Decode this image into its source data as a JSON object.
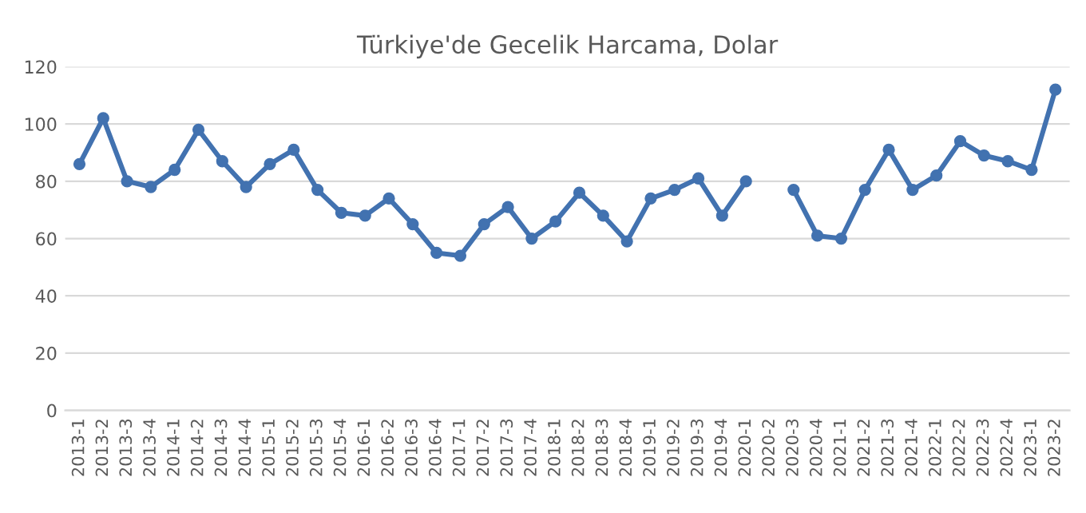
{
  "chart_data": {
    "type": "line",
    "title": "Türkiye'de Gecelik Harcama, Dolar",
    "categories": [
      "2013-1",
      "2013-2",
      "2013-3",
      "2013-4",
      "2014-1",
      "2014-2",
      "2014-3",
      "2014-4",
      "2015-1",
      "2015-2",
      "2015-3",
      "2015-4",
      "2016-1",
      "2016-2",
      "2016-3",
      "2016-4",
      "2017-1",
      "2017-2",
      "2017-3",
      "2017-4",
      "2018-1",
      "2018-2",
      "2018-3",
      "2018-4",
      "2019-1",
      "2019-2",
      "2019-3",
      "2019-4",
      "2020-1",
      "2020-2",
      "2020-3",
      "2020-4",
      "2021-1",
      "2021-2",
      "2021-3",
      "2021-4",
      "2022-1",
      "2022-2",
      "2022-3",
      "2022-4",
      "2023-1",
      "2023-2"
    ],
    "series": [
      {
        "color": "#4272b0",
        "values": [
          86,
          102,
          80,
          78,
          84,
          98,
          87,
          78,
          86,
          91,
          77,
          69,
          68,
          74,
          65,
          55,
          54,
          65,
          71,
          60,
          66,
          76,
          68,
          59,
          74,
          77,
          81,
          68,
          80,
          null,
          77,
          61,
          60,
          77,
          91,
          77,
          82,
          94,
          89,
          87,
          84,
          112
        ]
      }
    ],
    "ylim": [
      0,
      120
    ],
    "yticks": [
      0,
      20,
      40,
      60,
      80,
      100,
      120
    ],
    "grid": "y",
    "marker": "circle",
    "line_style": "solid",
    "legend": false
  }
}
